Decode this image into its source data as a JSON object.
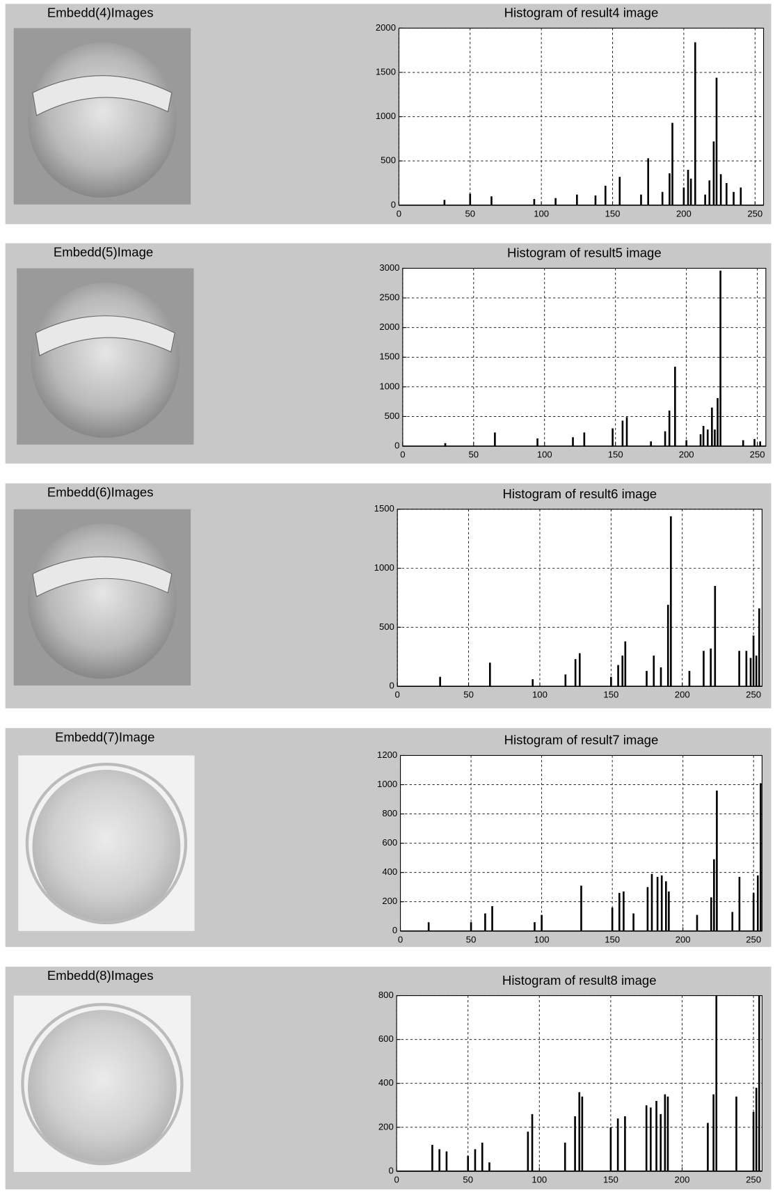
{
  "panels": [
    {
      "image_title": "Embedd(4)Images"
    },
    {
      "image_title": "Embedd(5)Image"
    },
    {
      "image_title": "Embedd(6)Images"
    },
    {
      "image_title": "Embedd(7)Image"
    },
    {
      "image_title": "Embedd(8)Images"
    }
  ],
  "chart_data": [
    {
      "type": "bar",
      "title": "Histogram of result4 image",
      "color": "#000000",
      "grid": true,
      "xlim": [
        0,
        256
      ],
      "xticks": [
        0,
        50,
        100,
        150,
        200,
        250
      ],
      "ylim": [
        0,
        2000
      ],
      "yticks": [
        0,
        500,
        1000,
        1500,
        2000
      ],
      "x": [
        32,
        50,
        65,
        95,
        110,
        125,
        138,
        145,
        155,
        170,
        175,
        185,
        190,
        192,
        200,
        203,
        205,
        208,
        215,
        218,
        221,
        223,
        226,
        230,
        235,
        240
      ],
      "values": [
        60,
        130,
        100,
        70,
        80,
        120,
        110,
        220,
        320,
        120,
        530,
        150,
        360,
        930,
        200,
        400,
        300,
        1840,
        120,
        280,
        720,
        1440,
        350,
        250,
        150,
        200
      ]
    },
    {
      "type": "bar",
      "title": "Histogram of result5 image",
      "color": "#000000",
      "grid": true,
      "xlim": [
        0,
        256
      ],
      "xticks": [
        0,
        50,
        100,
        150,
        200,
        250
      ],
      "ylim": [
        0,
        3000
      ],
      "yticks": [
        0,
        500,
        1000,
        1500,
        2000,
        2500,
        3000
      ],
      "x": [
        30,
        65,
        95,
        120,
        128,
        148,
        155,
        158,
        175,
        185,
        188,
        192,
        200,
        210,
        212,
        215,
        218,
        220,
        222,
        224,
        240,
        248,
        252
      ],
      "values": [
        50,
        230,
        130,
        150,
        230,
        300,
        430,
        490,
        80,
        250,
        600,
        1340,
        100,
        200,
        340,
        280,
        650,
        280,
        810,
        2960,
        100,
        120,
        80
      ]
    },
    {
      "type": "bar",
      "title": "Histogram of result6 image",
      "color": "#000000",
      "grid": true,
      "xlim": [
        0,
        256
      ],
      "xticks": [
        0,
        50,
        100,
        150,
        200,
        250
      ],
      "ylim": [
        0,
        1500
      ],
      "yticks": [
        0,
        500,
        1000,
        1500
      ],
      "x": [
        30,
        65,
        95,
        118,
        125,
        128,
        150,
        155,
        158,
        160,
        175,
        180,
        185,
        190,
        192,
        205,
        215,
        220,
        223,
        240,
        245,
        248,
        250,
        252,
        254
      ],
      "values": [
        80,
        200,
        60,
        100,
        230,
        280,
        80,
        180,
        260,
        380,
        130,
        260,
        160,
        690,
        1440,
        130,
        300,
        320,
        850,
        300,
        300,
        240,
        430,
        260,
        660
      ]
    },
    {
      "type": "bar",
      "title": "Histogram of result7 image",
      "color": "#000000",
      "grid": true,
      "xlim": [
        0,
        256
      ],
      "xticks": [
        0,
        50,
        100,
        150,
        200,
        250
      ],
      "ylim": [
        0,
        1200
      ],
      "yticks": [
        0,
        200,
        400,
        600,
        800,
        1000,
        1200
      ],
      "x": [
        20,
        50,
        60,
        65,
        95,
        100,
        128,
        150,
        155,
        158,
        165,
        175,
        178,
        182,
        185,
        188,
        190,
        210,
        220,
        222,
        224,
        235,
        240,
        250,
        253,
        255
      ],
      "values": [
        60,
        60,
        120,
        170,
        60,
        110,
        310,
        160,
        260,
        270,
        120,
        300,
        390,
        370,
        380,
        340,
        270,
        110,
        230,
        490,
        960,
        130,
        370,
        260,
        380,
        1010
      ]
    },
    {
      "type": "bar",
      "title": "Histogram of result8 image",
      "color": "#000000",
      "grid": true,
      "xlim": [
        0,
        256
      ],
      "xticks": [
        0,
        50,
        100,
        150,
        200,
        250
      ],
      "ylim": [
        0,
        800
      ],
      "yticks": [
        0,
        200,
        400,
        600,
        800
      ],
      "x": [
        25,
        30,
        35,
        50,
        55,
        60,
        65,
        92,
        95,
        118,
        125,
        128,
        130,
        150,
        155,
        160,
        175,
        178,
        182,
        185,
        188,
        190,
        218,
        222,
        224,
        238,
        250,
        252,
        254
      ],
      "values": [
        120,
        100,
        90,
        70,
        100,
        130,
        40,
        180,
        260,
        130,
        250,
        360,
        340,
        200,
        240,
        250,
        300,
        290,
        320,
        260,
        350,
        340,
        220,
        350,
        800,
        340,
        270,
        380,
        800
      ]
    }
  ]
}
